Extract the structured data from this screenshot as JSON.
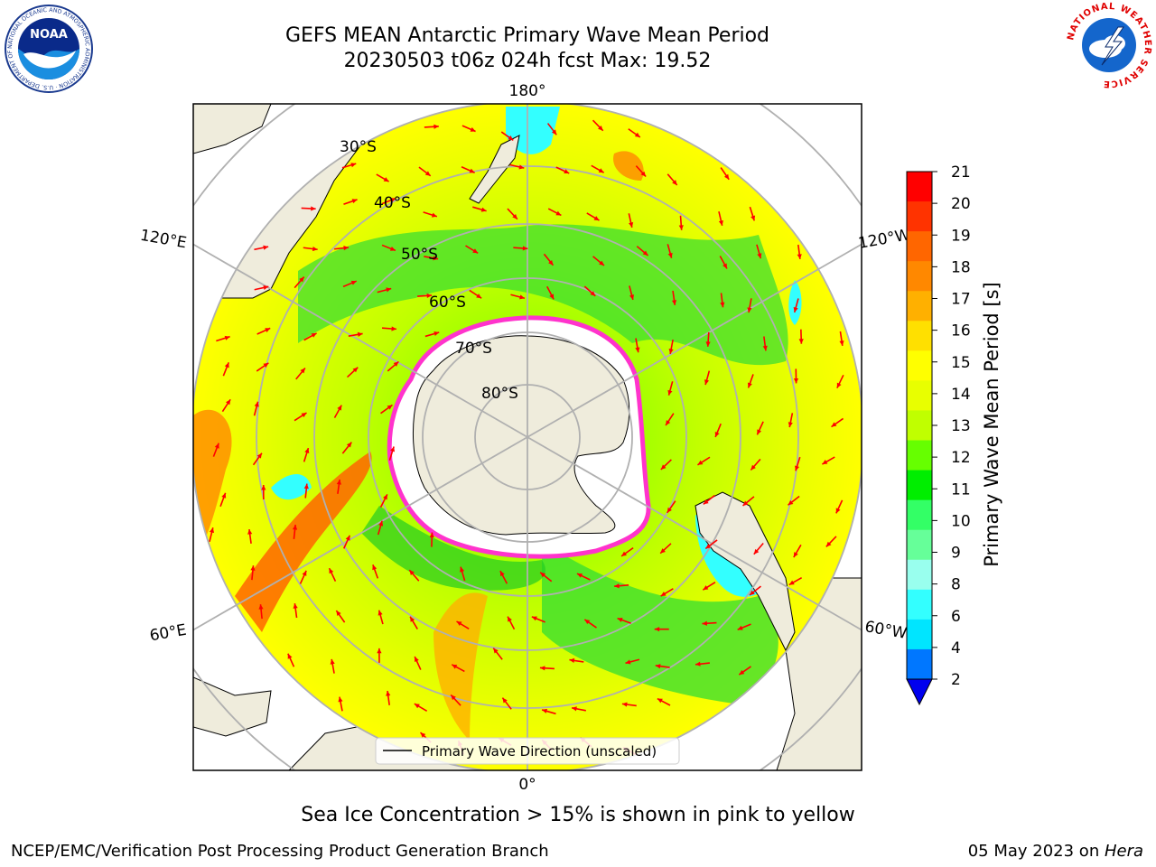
{
  "title_line1": "GEFS MEAN Antarctic Primary Wave Mean Period",
  "title_line2": "20230503 t06z 024h fcst   Max: 19.52",
  "logos": {
    "left": "noaa-logo",
    "right": "national-weather-service-logo",
    "noaa_text": "NOAA",
    "noaa_ring_text": "NATIONAL OCEANIC AND ATMOSPHERIC ADMINISTRATION · U.S. DEPARTMENT OF COMMERCE",
    "nws_ring_text": "NATIONAL WEATHER SERVICE"
  },
  "map": {
    "projection": "south-polar-stereographic",
    "lon_labels": [
      "180°",
      "120°E",
      "120°W",
      "60°E",
      "60°W",
      "0°"
    ],
    "lat_labels": [
      "30°S",
      "40°S",
      "50°S",
      "60°S",
      "70°S",
      "80°S"
    ],
    "legend_label": "Primary Wave Direction (unscaled)",
    "colors": {
      "land": "#efecdc",
      "ice": "#ffffff",
      "arrow": "#ff0000",
      "grid": "#b0b0b0",
      "sea_ice_edge": "#ff33cc"
    }
  },
  "colorbar": {
    "label": "Primary Wave Mean Period [s]",
    "ticks": [
      "21",
      "20",
      "19",
      "18",
      "17",
      "16",
      "15",
      "14",
      "13",
      "12",
      "11",
      "10",
      "9",
      "8",
      "6",
      "4",
      "2"
    ],
    "colors": [
      "#ff0000",
      "#ff3300",
      "#ff6600",
      "#ff8800",
      "#ffb000",
      "#ffe000",
      "#ffff00",
      "#e8ff00",
      "#c0ff00",
      "#66ff00",
      "#00ee00",
      "#33ff66",
      "#66ff99",
      "#99ffee",
      "#33ffff",
      "#00e5ff",
      "#0077ff"
    ],
    "extend_color": "#0000ee"
  },
  "chart_data": {
    "type": "heatmap",
    "title": "GEFS MEAN Antarctic Primary Wave Mean Period",
    "subtitle": "20230503 t06z 024h fcst   Max: 19.52",
    "variable": "Primary Wave Mean Period",
    "units": "s",
    "colorbar_range": [
      2,
      21
    ],
    "max_value": 19.52,
    "overlay": "Primary Wave Direction (unscaled)"
  },
  "note": "Sea Ice Concentration > 15% is shown in pink to yellow",
  "footer_left": "NCEP/EMC/Verification Post Processing Product Generation Branch",
  "footer_date": "05 May 2023 on ",
  "footer_host": "Hera"
}
